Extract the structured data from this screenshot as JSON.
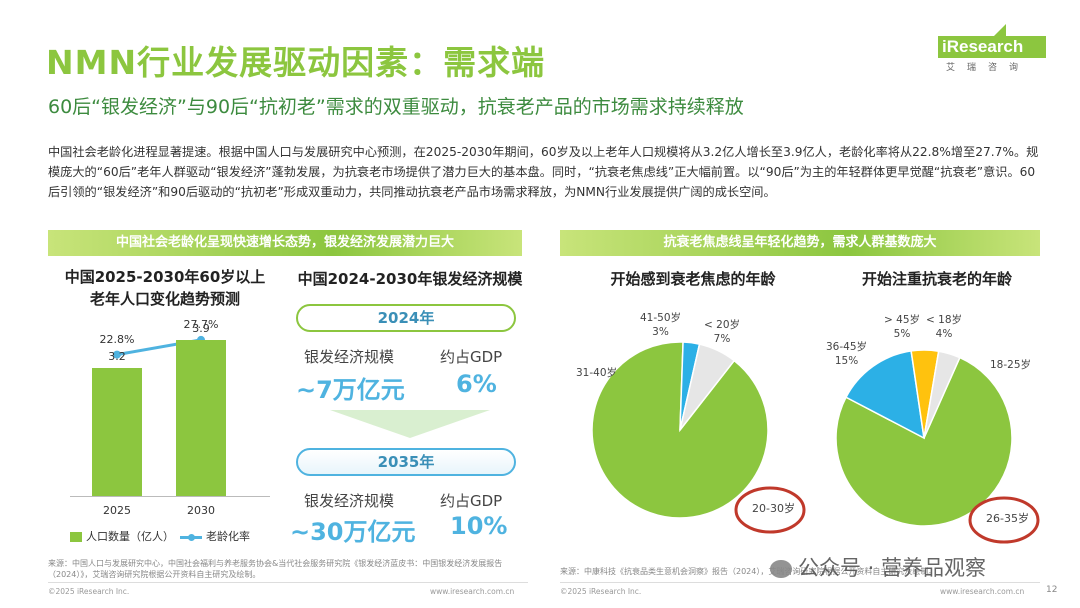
{
  "title": "NMN行业发展驱动因素：需求端",
  "subtitle": "60后“银发经济”与90后“抗初老”需求的双重驱动，抗衰老产品的市场需求持续释放",
  "body": "中国社会老龄化进程显著提速。根据中国人口与发展研究中心预测，在2025-2030年期间，60岁及以上老年人口规模将从3.2亿人增长至3.9亿人，老龄化率将从22.8%增至27.7%。规模庞大的“60后”老年人群驱动“银发经济”蓬勃发展，为抗衰老市场提供了潜力巨大的基本盘。同时，“抗衰老焦虑线”正大幅前置。以“90后”为主的年轻群体更早觉醒“抗衰老”意识。60后引领的“银发经济”和90后驱动的“抗初老”形成双重动力，共同推动抗衰老产品市场需求释放，为NMN行业发展提供广阔的成长空间。",
  "logo": {
    "brand": "iResearch",
    "sub": "艾瑞咨询"
  },
  "left_band": "中国社会老龄化呈现快速增长态势，银发经济发展潜力巨大",
  "right_band": "抗衰老焦虑线呈年轻化趋势，需求人群基数庞大",
  "population": {
    "title": "中国2025-2030年60岁以上老年人口变化趋势预测",
    "legend_bar": "人口数量（亿人）",
    "legend_line": "老龄化率"
  },
  "silver": {
    "title": "中国2024-2030年银发经济规模",
    "year1": "2024年",
    "scale_label_1": "银发经济规模",
    "scale_value_1": "~7万亿元",
    "gdp_label_1": "约占GDP",
    "gdp_value_1": "6%",
    "year2": "2035年",
    "scale_label_2": "银发经济规模",
    "scale_value_2": "~30万亿元",
    "gdp_label_2": "约占GDP",
    "gdp_value_2": "10%"
  },
  "colors": {
    "green": "#8cc63f",
    "blue": "#2cb0e6",
    "yellow": "#ffc20e",
    "gray": "#e6e6e6",
    "red": "#c0392b"
  },
  "chart_data": [
    {
      "type": "bar",
      "categories": [
        "2025",
        "2030"
      ],
      "series": [
        {
          "name": "人口数量（亿人）",
          "values": [
            3.2,
            3.9
          ]
        },
        {
          "name": "老龄化率",
          "values": [
            22.8,
            27.7
          ],
          "unit": "%",
          "display": [
            "22.8%",
            "27.7%"
          ]
        }
      ]
    },
    {
      "type": "pie",
      "title": "开始感到衰老焦虑的年龄",
      "labels": [
        "20-30岁",
        "31-40岁",
        "41-50岁",
        "< 20岁"
      ],
      "values": [
        90,
        0,
        3,
        7
      ],
      "display": [
        "20-30岁",
        "31-40岁",
        "41-50岁\n3%",
        "< 20岁\n7%"
      ]
    },
    {
      "type": "pie",
      "title": "开始注重抗衰老的年龄",
      "labels": [
        "26-35岁",
        "18-25岁",
        "36-45岁",
        "> 45岁",
        "< 18岁"
      ],
      "values": [
        76,
        0,
        15,
        5,
        4
      ],
      "display": [
        "26-35岁",
        "18-25岁",
        "36-45岁\n15%",
        "> 45岁\n5%",
        "< 18岁\n4%"
      ]
    }
  ],
  "footnote_left": "来源：中国人口与发展研究中心，中国社会福利与养老服务协会&当代社会服务研究院《银发经济蓝皮书：中国银发经济发展报告（2024）》，艾瑞咨询研究院根据公开资料自主研究及绘制。",
  "footnote_right": "来源：中康科技《抗衰品类生意机会洞察》报告（2024），艾瑞咨询研究院根据公开资料自主研究及绘制。",
  "copyright": "©2025 iResearch Inc.",
  "website": "www.iresearch.com.cn",
  "watermark": "公众号 · 营养品观察",
  "page_number": "12"
}
